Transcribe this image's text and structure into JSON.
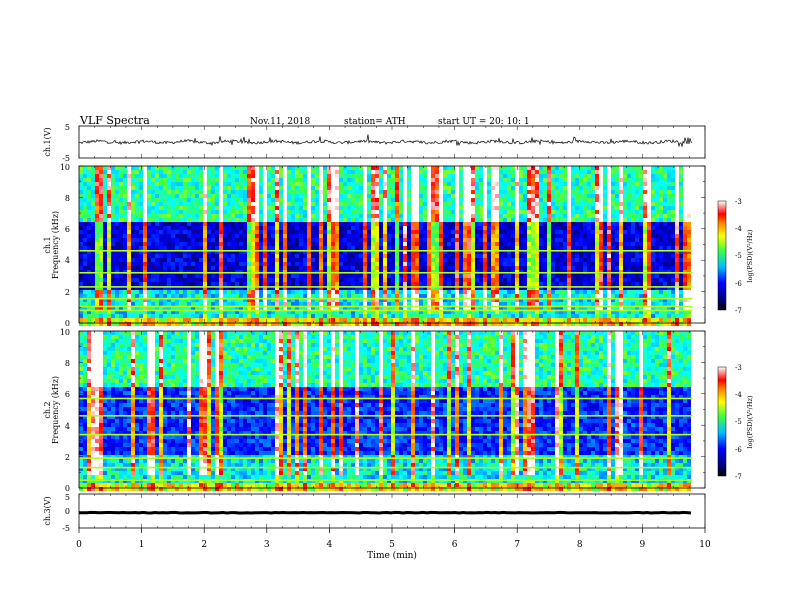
{
  "chart_data": {
    "type": "heatmap",
    "header": {
      "title": "VLF  Spectra",
      "date": "Nov.11, 2018",
      "station": "station= ATH",
      "start_ut": "start  UT  =    20: 10: 1"
    },
    "x_axis": {
      "label": "Time  (min)",
      "range": [
        0,
        10
      ],
      "ticks": [
        "0",
        "1",
        "2",
        "3",
        "4",
        "5",
        "6",
        "7",
        "8",
        "9",
        "10"
      ]
    },
    "panels": [
      {
        "name": "ch.1 waveform",
        "type": "line",
        "ylabel": "ch.1(V)",
        "ylim": [
          -5,
          5
        ],
        "yticks": [
          "5",
          "-5"
        ],
        "approx_level": 0.0,
        "data_end_min": 9.8
      },
      {
        "name": "ch.1 spectrogram",
        "type": "heatmap",
        "ylabel_lines": [
          "ch.1",
          "Frequency  (kHz)"
        ],
        "ylim": [
          0,
          10
        ],
        "yticks": [
          "0",
          "2",
          "4",
          "6",
          "8",
          "10"
        ],
        "data_end_min": 9.8,
        "colorbar": {
          "label": "log(PSD)(V²/Hz)",
          "range": [
            -7,
            -3
          ],
          "ticks": [
            "-3",
            "-4",
            "-5",
            "-6",
            "-7"
          ]
        }
      },
      {
        "name": "ch.2 spectrogram",
        "type": "heatmap",
        "ylabel_lines": [
          "ch.2",
          "Frequency  (kHz)"
        ],
        "ylim": [
          0,
          10
        ],
        "yticks": [
          "0",
          "2",
          "4",
          "6",
          "8",
          "10"
        ],
        "data_end_min": 9.8,
        "colorbar": {
          "label": "log(PSD)(V²/Hz)",
          "range": [
            -7,
            -3
          ],
          "ticks": [
            "-3",
            "-4",
            "-5",
            "-6",
            "-7"
          ]
        }
      },
      {
        "name": "ch.3 waveform",
        "type": "line",
        "ylabel": "ch.3(V)",
        "ylim": [
          -5,
          5
        ],
        "yticks": [
          "5",
          "0",
          "-5"
        ],
        "approx_level": -0.5,
        "data_end_min": 9.8
      }
    ],
    "colormap": [
      "#000000",
      "#00007f",
      "#0000ff",
      "#00a0ff",
      "#00ffff",
      "#40ff40",
      "#ffff00",
      "#ff8000",
      "#ff0000",
      "#ffffff"
    ]
  }
}
